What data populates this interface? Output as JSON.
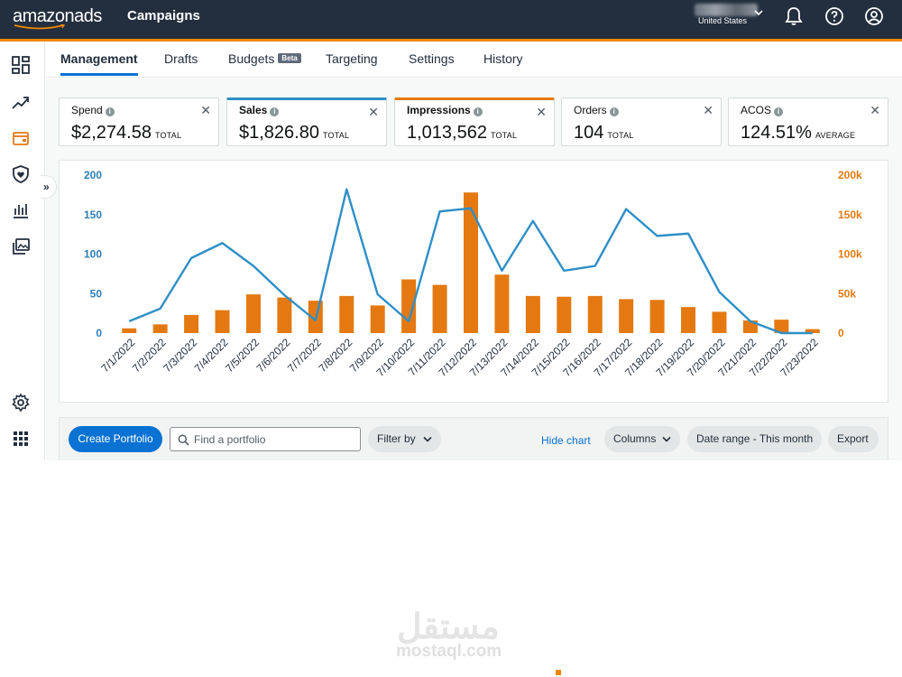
{
  "app": {
    "logo_text": "amazonads",
    "title": "Campaigns",
    "account_country": "United States"
  },
  "colors": {
    "header": "#232f3e",
    "accent": "#f08804",
    "sales_line": "#2e8fc7",
    "impressions_bar": "#e47911",
    "primary": "#0972d3"
  },
  "header_icons": [
    "bell-icon",
    "help-icon",
    "user-icon"
  ],
  "sidebar_icons": [
    "dashboard-icon",
    "trend-icon",
    "wallet-icon",
    "shield-heart-icon",
    "bar-chart-icon",
    "images-icon",
    "settings-icon",
    "apps-grid-icon"
  ],
  "tabs": [
    {
      "label": "Management",
      "active": true
    },
    {
      "label": "Drafts"
    },
    {
      "label": "Budgets",
      "badge": "Beta"
    },
    {
      "label": "Targeting"
    },
    {
      "label": "Settings"
    },
    {
      "label": "History"
    }
  ],
  "metrics": [
    {
      "label": "Spend",
      "value": "$2,274.58",
      "suffix": "TOTAL"
    },
    {
      "label": "Sales",
      "value": "$1,826.80",
      "suffix": "TOTAL"
    },
    {
      "label": "Impressions",
      "value": "1,013,562",
      "suffix": "TOTAL"
    },
    {
      "label": "Orders",
      "value": "104",
      "suffix": "TOTAL"
    },
    {
      "label": "ACOS",
      "value": "124.51%",
      "suffix": "AVERAGE"
    }
  ],
  "chart_data": {
    "type": "bar+line",
    "categories": [
      "7/1/2022",
      "7/2/2022",
      "7/3/2022",
      "7/4/2022",
      "7/5/2022",
      "7/6/2022",
      "7/7/2022",
      "7/8/2022",
      "7/9/2022",
      "7/10/2022",
      "7/11/2022",
      "7/12/2022",
      "7/13/2022",
      "7/14/2022",
      "7/15/2022",
      "7/16/2022",
      "7/17/2022",
      "7/18/2022",
      "7/19/2022",
      "7/20/2022",
      "7/21/2022",
      "7/22/2022",
      "7/23/2022"
    ],
    "series": [
      {
        "name": "Sales",
        "type": "line",
        "axis": "left",
        "values": [
          15,
          31,
          95,
          114,
          85,
          48,
          16,
          182,
          49,
          15,
          154,
          158,
          79,
          142,
          79,
          85,
          157,
          123,
          126,
          52,
          15,
          0,
          0
        ]
      },
      {
        "name": "Impressions",
        "type": "bar",
        "axis": "right",
        "values": [
          6000,
          11000,
          23000,
          29000,
          49000,
          45000,
          41000,
          47000,
          35000,
          68000,
          61000,
          178000,
          74000,
          47000,
          46000,
          47000,
          43000,
          42000,
          33000,
          27000,
          16000,
          17000,
          5000
        ]
      }
    ],
    "left_axis": {
      "ticks": [
        "0",
        "50",
        "100",
        "150",
        "200"
      ],
      "range": [
        0,
        200
      ]
    },
    "right_axis": {
      "ticks": [
        "0",
        "50k",
        "100k",
        "150k",
        "200k"
      ],
      "range": [
        0,
        200000
      ]
    }
  },
  "toolbar": {
    "create_label": "Create Portfolio",
    "search_placeholder": "Find a portfolio",
    "filter_label": "Filter by",
    "hide_chart_label": "Hide chart",
    "columns_label": "Columns",
    "date_range_label": "Date range - This month",
    "export_label": "Export"
  },
  "watermark": {
    "arabic": "مستقل",
    "latin": "mostaql.com"
  }
}
